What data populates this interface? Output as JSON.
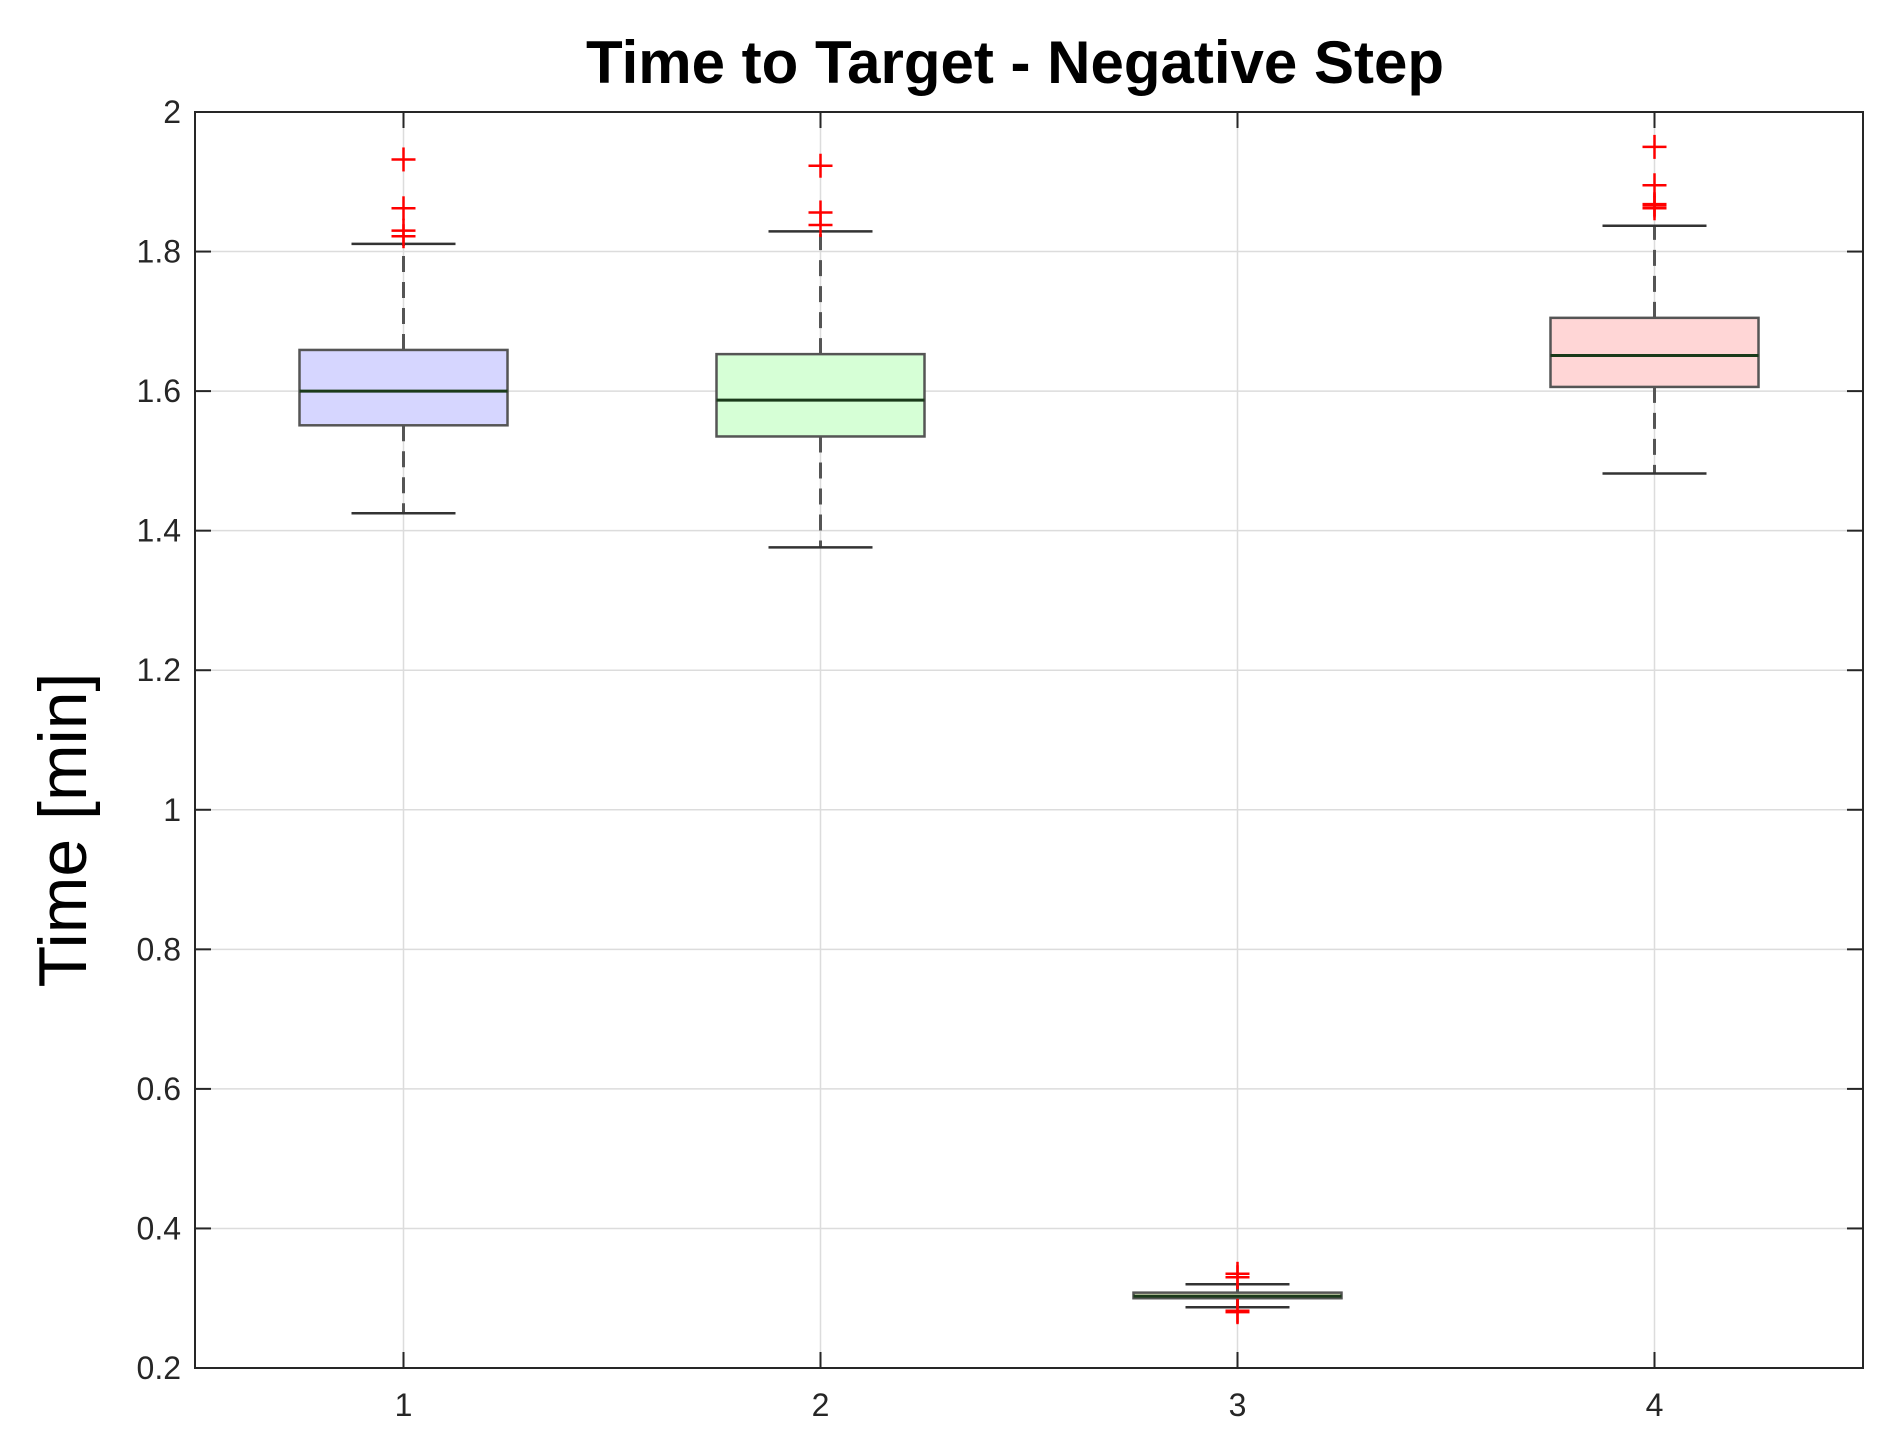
{
  "chart_data": {
    "type": "box",
    "title": "Time to Target - Negative Step",
    "xlabel": "",
    "ylabel": "Time [min]",
    "ylim": [
      0.2,
      2.0
    ],
    "yticks": [
      "0.2",
      "0.4",
      "0.6",
      "0.8",
      "1",
      "1.2",
      "1.4",
      "1.6",
      "1.8",
      "2"
    ],
    "categories": [
      "1",
      "2",
      "3",
      "4"
    ],
    "grid": true,
    "boxes": [
      {
        "category": "1",
        "whisker_low": 1.425,
        "q1": 1.551,
        "median": 1.6,
        "q3": 1.659,
        "whisker_high": 1.811,
        "outliers": [
          1.822,
          1.83,
          1.862,
          1.932
        ],
        "fill": "#d6d6ff"
      },
      {
        "category": "2",
        "whisker_low": 1.376,
        "q1": 1.535,
        "median": 1.587,
        "q3": 1.653,
        "whisker_high": 1.829,
        "outliers": [
          1.838,
          1.856,
          1.923
        ],
        "fill": "#d6ffd6"
      },
      {
        "category": "3",
        "whisker_low": 0.287,
        "q1": 0.3,
        "median": 0.303,
        "q3": 0.308,
        "whisker_high": 0.32,
        "outliers": [
          0.28,
          0.282,
          0.33,
          0.335
        ],
        "fill": "#ffffd6"
      },
      {
        "category": "4",
        "whisker_low": 1.482,
        "q1": 1.606,
        "median": 1.651,
        "q3": 1.705,
        "whisker_high": 1.837,
        "outliers": [
          1.862,
          1.866,
          1.868,
          1.895,
          1.95
        ],
        "fill": "#ffd6d6"
      }
    ]
  }
}
